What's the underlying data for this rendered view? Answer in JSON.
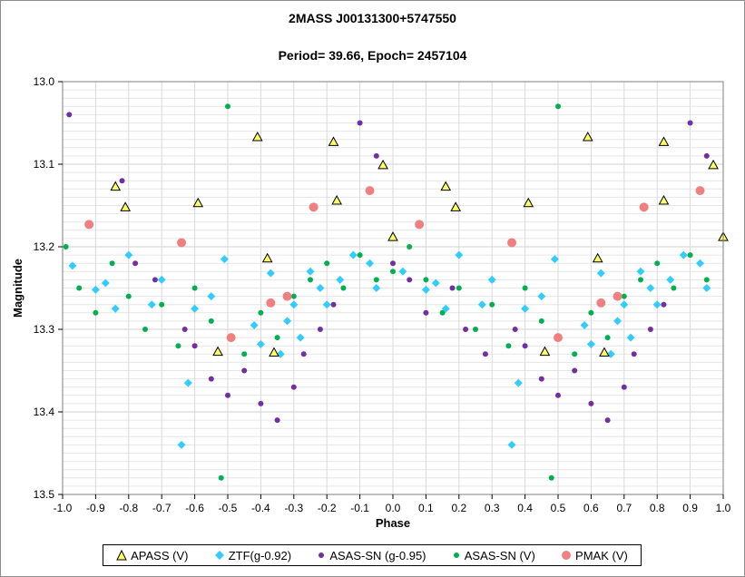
{
  "title": "2MASS J00131300+5747550",
  "subtitle": "Period= 39.66, Epoch= 2457104",
  "chart_data": {
    "type": "scatter",
    "title": "2MASS J00131300+5747550",
    "subtitle": "Period= 39.66, Epoch= 2457104",
    "xlabel": "Phase",
    "ylabel": "Magnitude",
    "xlim": [
      -1.0,
      1.0
    ],
    "ylim": [
      13.5,
      13.0
    ],
    "y_inverted": true,
    "x_ticks": [
      "-1.0",
      "-0.9",
      "-0.8",
      "-0.7",
      "-0.6",
      "-0.5",
      "-0.4",
      "-0.3",
      "-0.2",
      "-0.1",
      "0.0",
      "0.1",
      "0.2",
      "0.3",
      "0.4",
      "0.5",
      "0.6",
      "0.7",
      "0.8",
      "0.9",
      "1.0"
    ],
    "y_ticks": [
      "13.0",
      "13.1",
      "13.2",
      "13.3",
      "13.4",
      "13.5"
    ],
    "grid": true,
    "legend_position": "bottom",
    "series": [
      {
        "name": "APASS (V)",
        "marker": "triangle",
        "color": "#ffff66",
        "points": [
          [
            -0.84,
            13.127
          ],
          [
            -0.81,
            13.152
          ],
          [
            -0.59,
            13.147
          ],
          [
            -0.53,
            13.327
          ],
          [
            -0.41,
            13.067
          ],
          [
            -0.38,
            13.214
          ],
          [
            -0.36,
            13.328
          ],
          [
            -0.18,
            13.073
          ],
          [
            -0.17,
            13.144
          ],
          [
            -0.03,
            13.101
          ],
          [
            0.0,
            13.188
          ],
          [
            0.16,
            13.127
          ],
          [
            0.19,
            13.152
          ],
          [
            0.41,
            13.147
          ],
          [
            0.46,
            13.327
          ],
          [
            0.59,
            13.067
          ],
          [
            0.62,
            13.214
          ],
          [
            0.64,
            13.328
          ],
          [
            0.82,
            13.073
          ],
          [
            0.82,
            13.144
          ],
          [
            0.97,
            13.101
          ],
          [
            1.0,
            13.188
          ]
        ]
      },
      {
        "name": "ZTF(g-0.92)",
        "marker": "diamond",
        "color": "#33ccff",
        "points": [
          [
            -0.97,
            13.223
          ],
          [
            -0.9,
            13.252
          ],
          [
            -0.87,
            13.244
          ],
          [
            -0.8,
            13.21
          ],
          [
            -0.84,
            13.275
          ],
          [
            -0.73,
            13.27
          ],
          [
            -0.7,
            13.24
          ],
          [
            -0.64,
            13.44
          ],
          [
            -0.62,
            13.365
          ],
          [
            -0.6,
            13.275
          ],
          [
            -0.55,
            13.26
          ],
          [
            -0.51,
            13.215
          ],
          [
            -0.42,
            13.295
          ],
          [
            -0.4,
            13.318
          ],
          [
            -0.37,
            13.232
          ],
          [
            -0.34,
            13.33
          ],
          [
            -0.32,
            13.29
          ],
          [
            -0.3,
            13.27
          ],
          [
            -0.28,
            13.31
          ],
          [
            -0.25,
            13.23
          ],
          [
            -0.22,
            13.25
          ],
          [
            -0.2,
            13.27
          ],
          [
            -0.16,
            13.24
          ],
          [
            -0.12,
            13.21
          ],
          [
            -0.07,
            13.22
          ],
          [
            -0.05,
            13.25
          ],
          [
            0.03,
            13.23
          ],
          [
            0.1,
            13.252
          ],
          [
            0.13,
            13.244
          ],
          [
            0.2,
            13.21
          ],
          [
            0.16,
            13.275
          ],
          [
            0.27,
            13.27
          ],
          [
            0.3,
            13.24
          ],
          [
            0.36,
            13.44
          ],
          [
            0.38,
            13.365
          ],
          [
            0.4,
            13.275
          ],
          [
            0.45,
            13.26
          ],
          [
            0.49,
            13.215
          ],
          [
            0.58,
            13.295
          ],
          [
            0.6,
            13.318
          ],
          [
            0.63,
            13.232
          ],
          [
            0.66,
            13.33
          ],
          [
            0.68,
            13.29
          ],
          [
            0.7,
            13.27
          ],
          [
            0.72,
            13.31
          ],
          [
            0.75,
            13.23
          ],
          [
            0.78,
            13.25
          ],
          [
            0.8,
            13.27
          ],
          [
            0.84,
            13.24
          ],
          [
            0.88,
            13.21
          ],
          [
            0.93,
            13.22
          ],
          [
            0.95,
            13.25
          ]
        ]
      },
      {
        "name": "ASAS-SN (g-0.95)",
        "marker": "circle",
        "color": "#7030a0",
        "points": [
          [
            -0.98,
            13.04
          ],
          [
            -0.82,
            13.12
          ],
          [
            -0.78,
            13.22
          ],
          [
            -0.72,
            13.24
          ],
          [
            -0.63,
            13.3
          ],
          [
            -0.6,
            13.32
          ],
          [
            -0.55,
            13.36
          ],
          [
            -0.5,
            13.38
          ],
          [
            -0.45,
            13.35
          ],
          [
            -0.4,
            13.39
          ],
          [
            -0.35,
            13.41
          ],
          [
            -0.3,
            13.37
          ],
          [
            -0.27,
            13.33
          ],
          [
            -0.22,
            13.3
          ],
          [
            -0.18,
            13.27
          ],
          [
            -0.1,
            13.05
          ],
          [
            -0.05,
            13.09
          ],
          [
            0.0,
            13.22
          ],
          [
            0.05,
            13.24
          ],
          [
            0.1,
            13.28
          ],
          [
            0.18,
            13.25
          ],
          [
            0.22,
            13.3
          ],
          [
            0.28,
            13.33
          ],
          [
            0.37,
            13.3
          ],
          [
            0.4,
            13.32
          ],
          [
            0.45,
            13.36
          ],
          [
            0.5,
            13.38
          ],
          [
            0.55,
            13.35
          ],
          [
            0.6,
            13.39
          ],
          [
            0.65,
            13.41
          ],
          [
            0.7,
            13.37
          ],
          [
            0.73,
            13.33
          ],
          [
            0.78,
            13.3
          ],
          [
            0.82,
            13.27
          ],
          [
            0.9,
            13.05
          ],
          [
            0.95,
            13.09
          ]
        ]
      },
      {
        "name": "ASAS-SN (V)",
        "marker": "circle",
        "color": "#00b050",
        "points": [
          [
            -0.99,
            13.2
          ],
          [
            -0.95,
            13.25
          ],
          [
            -0.9,
            13.28
          ],
          [
            -0.85,
            13.22
          ],
          [
            -0.8,
            13.26
          ],
          [
            -0.75,
            13.3
          ],
          [
            -0.7,
            13.27
          ],
          [
            -0.65,
            13.32
          ],
          [
            -0.6,
            13.25
          ],
          [
            -0.55,
            13.29
          ],
          [
            -0.52,
            13.48
          ],
          [
            -0.5,
            13.03
          ],
          [
            -0.45,
            13.33
          ],
          [
            -0.4,
            13.28
          ],
          [
            -0.35,
            13.31
          ],
          [
            -0.3,
            13.26
          ],
          [
            -0.25,
            13.24
          ],
          [
            -0.2,
            13.22
          ],
          [
            -0.15,
            13.25
          ],
          [
            -0.1,
            13.21
          ],
          [
            -0.05,
            13.24
          ],
          [
            0.0,
            13.23
          ],
          [
            0.05,
            13.2
          ],
          [
            0.1,
            13.24
          ],
          [
            0.15,
            13.28
          ],
          [
            0.2,
            13.25
          ],
          [
            0.25,
            13.3
          ],
          [
            0.3,
            13.27
          ],
          [
            0.35,
            13.32
          ],
          [
            0.4,
            13.25
          ],
          [
            0.45,
            13.29
          ],
          [
            0.48,
            13.48
          ],
          [
            0.5,
            13.03
          ],
          [
            0.55,
            13.33
          ],
          [
            0.6,
            13.28
          ],
          [
            0.65,
            13.31
          ],
          [
            0.7,
            13.26
          ],
          [
            0.75,
            13.24
          ],
          [
            0.8,
            13.22
          ],
          [
            0.85,
            13.25
          ],
          [
            0.9,
            13.21
          ],
          [
            0.95,
            13.24
          ]
        ]
      },
      {
        "name": "PMAK (V)",
        "marker": "circle",
        "color": "#f08080",
        "points": [
          [
            -0.92,
            13.173
          ],
          [
            -0.64,
            13.195
          ],
          [
            -0.49,
            13.31
          ],
          [
            -0.37,
            13.268
          ],
          [
            -0.32,
            13.26
          ],
          [
            -0.24,
            13.152
          ],
          [
            -0.07,
            13.132
          ],
          [
            0.08,
            13.173
          ],
          [
            0.36,
            13.195
          ],
          [
            0.5,
            13.31
          ],
          [
            0.63,
            13.268
          ],
          [
            0.68,
            13.26
          ],
          [
            0.76,
            13.152
          ],
          [
            0.93,
            13.132
          ]
        ]
      }
    ]
  }
}
